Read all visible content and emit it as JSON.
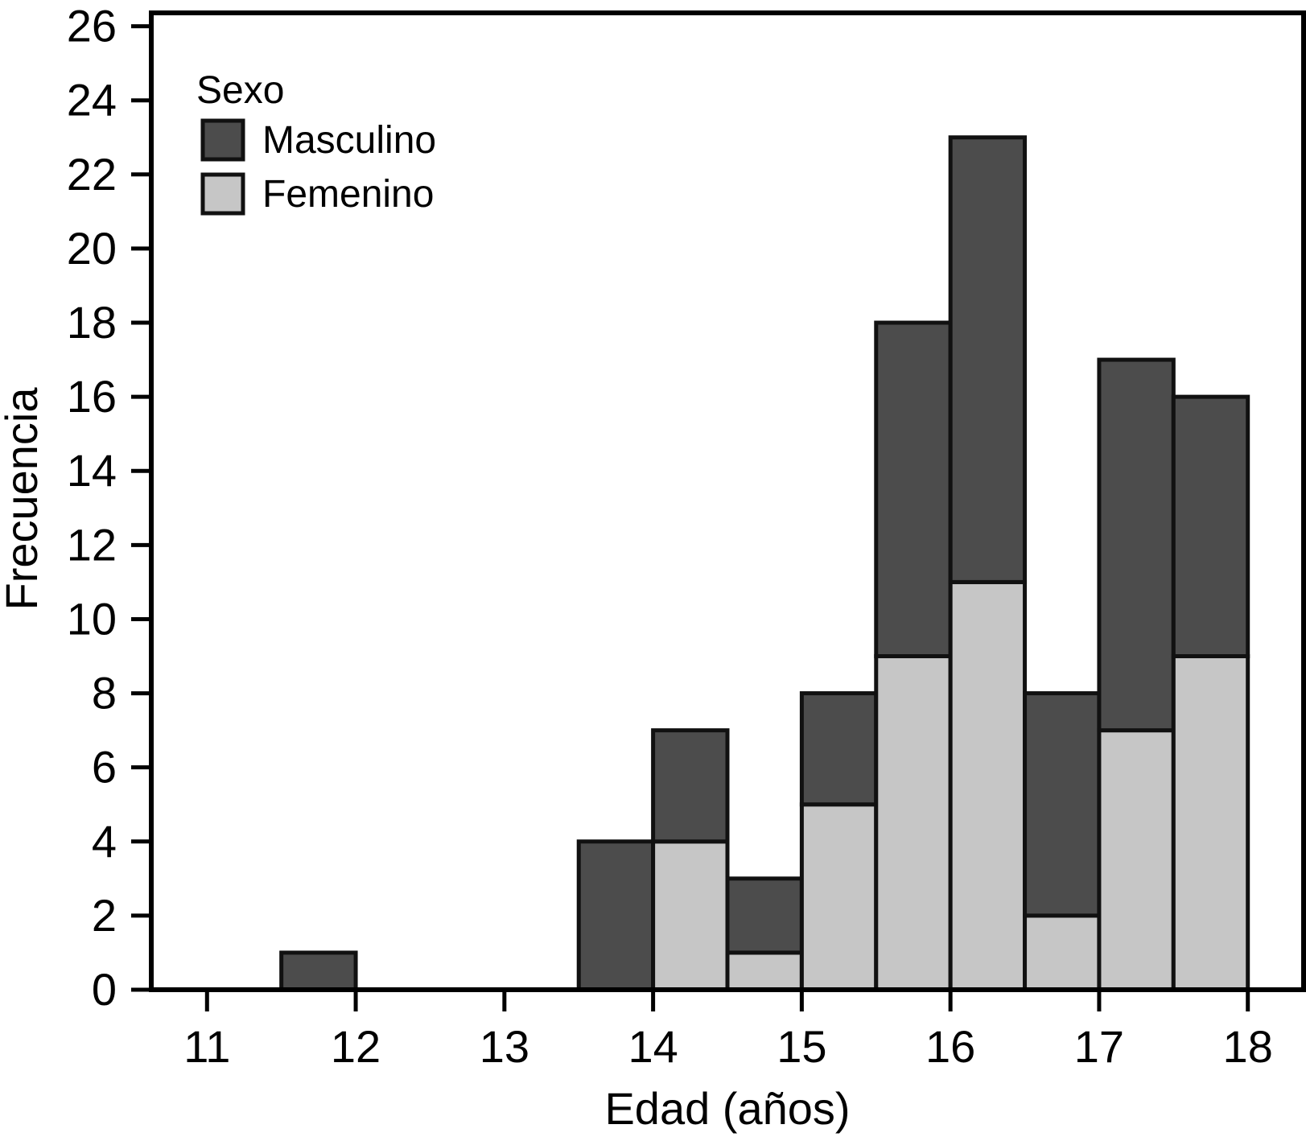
{
  "chart_data": {
    "type": "bar",
    "subtype": "stacked-histogram",
    "title": "",
    "xlabel": "Edad (años)",
    "ylabel": "Frecuencia",
    "bin_width": 0.5,
    "bin_starts": [
      11.5,
      13.5,
      14.0,
      14.5,
      15.0,
      15.5,
      16.0,
      16.5,
      17.0,
      17.5
    ],
    "series": [
      {
        "name": "Masculino",
        "color": "#4c4c4c",
        "values": [
          1,
          4,
          3,
          2,
          3,
          9,
          12,
          6,
          10,
          7
        ]
      },
      {
        "name": "Femenino",
        "color": "#c6c6c6",
        "values": [
          0,
          0,
          4,
          1,
          5,
          9,
          11,
          2,
          7,
          9
        ]
      }
    ],
    "stack_order_bottom_to_top": [
      "Femenino",
      "Masculino"
    ],
    "bin_totals": [
      1,
      4,
      7,
      3,
      8,
      18,
      23,
      8,
      17,
      16
    ],
    "x_ticks": [
      11,
      12,
      13,
      14,
      15,
      16,
      17,
      18
    ],
    "y_ticks": [
      0,
      2,
      4,
      6,
      8,
      10,
      12,
      14,
      16,
      18,
      20,
      22,
      24,
      26
    ],
    "xlim": [
      10.625,
      18.375
    ],
    "ylim": [
      0,
      26.36
    ],
    "grid": false,
    "frame": true,
    "legend": {
      "title": "Sexo",
      "position": "top-left",
      "entries": [
        "Masculino",
        "Femenino"
      ]
    }
  },
  "colors": {
    "masculino": "#4c4c4c",
    "femenino": "#c6c6c6",
    "bar_outline": "#111111",
    "axis": "#000000",
    "text": "#000000",
    "background": "#ffffff"
  }
}
